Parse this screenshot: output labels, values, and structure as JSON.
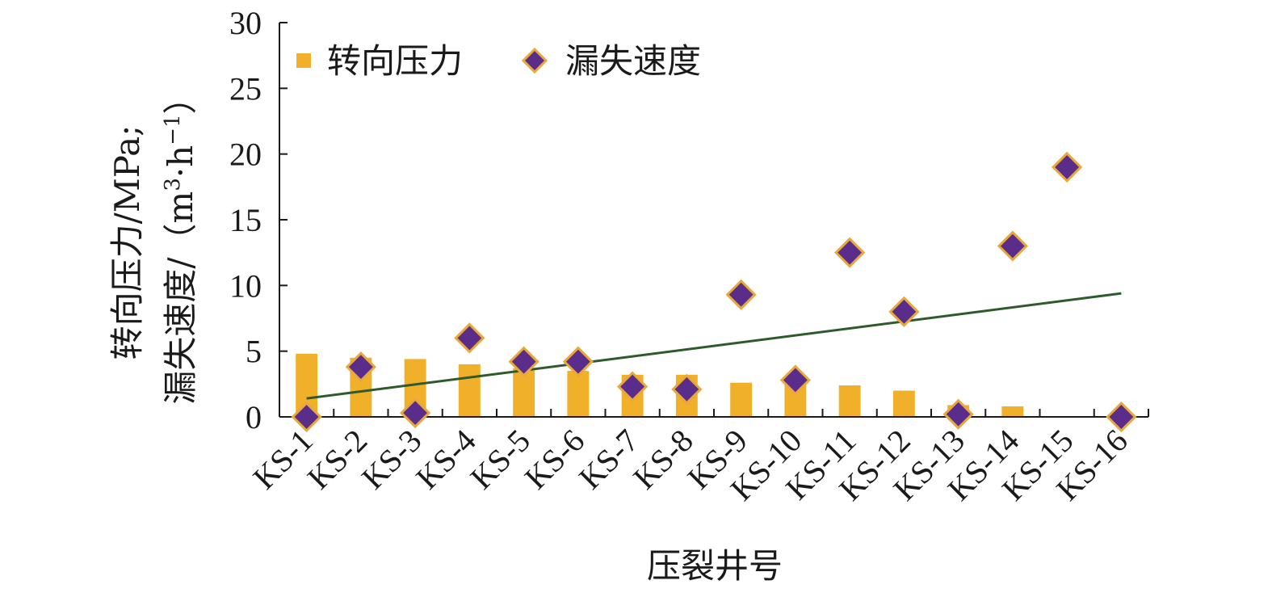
{
  "chart_data": {
    "type": "bar",
    "xlabel": "压裂井号",
    "ylabel_line1": "转向压力/MPa;",
    "ylabel_line2_prefix": "漏失速度/（m",
    "ylabel_line2_sup1": "3",
    "ylabel_line2_mid": "·h",
    "ylabel_line2_sup2": "−1",
    "ylabel_line2_suffix": "）",
    "ylim": [
      0,
      30
    ],
    "yticks": [
      "0",
      "5",
      "10",
      "15",
      "20",
      "25",
      "30"
    ],
    "grid": false,
    "legend_position": "top-left",
    "categories": [
      "KS-1",
      "KS-2",
      "KS-3",
      "KS-4",
      "KS-5",
      "KS-6",
      "KS-7",
      "KS-8",
      "KS-9",
      "KS-10",
      "KS-11",
      "KS-12",
      "KS-13",
      "KS-14",
      "KS-15",
      "KS-16"
    ],
    "series": [
      {
        "name": "转向压力",
        "type": "bar",
        "color": "#f0b02a",
        "values": [
          4.8,
          4.5,
          4.4,
          4.0,
          3.7,
          3.5,
          3.2,
          3.2,
          2.6,
          2.9,
          2.4,
          2.0,
          0.9,
          0.8,
          0,
          0
        ]
      },
      {
        "name": "漏失速度",
        "type": "scatter",
        "marker": "diamond",
        "color": "#5b2d8a",
        "edge_color": "#e8a83a",
        "values": [
          0.0,
          3.8,
          0.3,
          6.0,
          4.2,
          4.2,
          2.3,
          2.1,
          9.3,
          2.8,
          12.5,
          8.0,
          0.2,
          13.0,
          19.0,
          0.0
        ]
      }
    ],
    "trendline": {
      "of_series": "漏失速度",
      "type": "linear",
      "color": "#2f5a2c",
      "start": 1.4,
      "end": 9.4
    }
  }
}
